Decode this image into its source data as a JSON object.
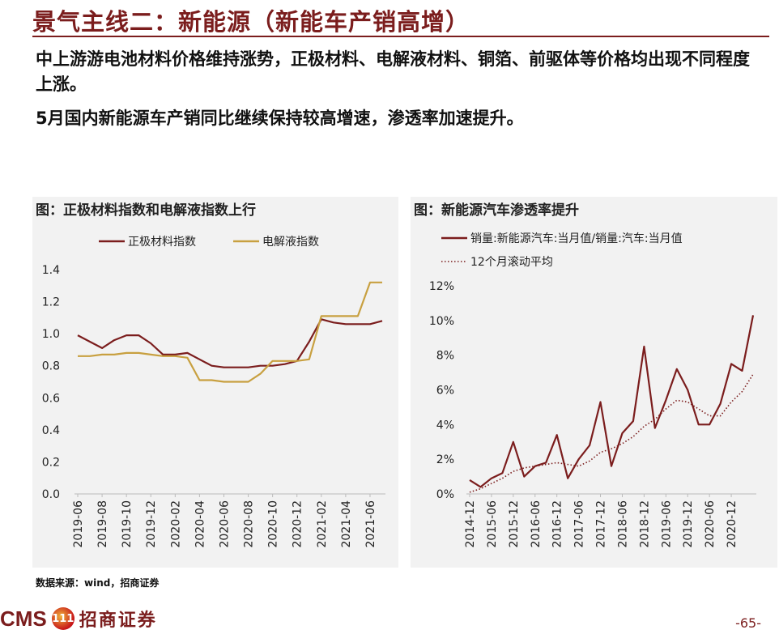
{
  "slide": {
    "title": "景气主线二：新能源（新能车产销高增）",
    "bullet1": "中上游游电池材料价格维持涨势，正极材料、电解液材料、铜箔、前驱体等价格均出现不同程度上涨。",
    "bullet2": "5月国内新能源车产销同比继续保持较高增速，渗透率加速提升。",
    "source": "数据来源：wind，招商证券",
    "logo_text": "CMS",
    "logo_cn": "招商证券",
    "logo_mark": "111",
    "page_number": "-65-"
  },
  "colors": {
    "maroon": "#7b1d1d",
    "gold": "#c8a040",
    "panel_bg": "#f2f2f2"
  },
  "chart_data": [
    {
      "type": "line",
      "panel_title": "图：正极材料指数和电解液指数上行",
      "x": [
        "2019-06",
        "2019-07",
        "2019-08",
        "2019-09",
        "2019-10",
        "2019-11",
        "2019-12",
        "2020-01",
        "2020-02",
        "2020-03",
        "2020-04",
        "2020-05",
        "2020-06",
        "2020-07",
        "2020-08",
        "2020-09",
        "2020-10",
        "2020-11",
        "2020-12",
        "2021-01",
        "2021-02",
        "2021-03",
        "2021-04",
        "2021-05",
        "2021-06",
        "2021-07"
      ],
      "xticks": [
        "2019-06",
        "2019-08",
        "2019-10",
        "2019-12",
        "2020-02",
        "2020-04",
        "2020-06",
        "2020-08",
        "2020-10",
        "2020-12",
        "2021-02",
        "2021-04",
        "2021-06"
      ],
      "ylim": [
        0,
        1.4
      ],
      "yticks": [
        "0.0",
        "0.2",
        "0.4",
        "0.6",
        "0.8",
        "1.0",
        "1.2",
        "1.4"
      ],
      "series": [
        {
          "name": "正极材料指数",
          "color": "#7b1d1d",
          "values": [
            0.99,
            0.95,
            0.91,
            0.96,
            0.99,
            0.99,
            0.94,
            0.87,
            0.87,
            0.88,
            0.84,
            0.8,
            0.79,
            0.79,
            0.79,
            0.8,
            0.8,
            0.81,
            0.83,
            0.95,
            1.09,
            1.07,
            1.06,
            1.06,
            1.06,
            1.08
          ]
        },
        {
          "name": "电解液指数",
          "color": "#c8a040",
          "values": [
            0.86,
            0.86,
            0.87,
            0.87,
            0.88,
            0.88,
            0.87,
            0.86,
            0.86,
            0.85,
            0.71,
            0.71,
            0.7,
            0.7,
            0.7,
            0.75,
            0.83,
            0.83,
            0.83,
            0.84,
            1.11,
            1.11,
            1.11,
            1.11,
            1.32,
            1.32
          ]
        }
      ]
    },
    {
      "type": "line",
      "panel_title": "图：新能源汽车渗透率提升",
      "x": [
        "2014-12",
        "2015-03",
        "2015-06",
        "2015-09",
        "2015-12",
        "2016-03",
        "2016-06",
        "2016-09",
        "2016-12",
        "2017-03",
        "2017-06",
        "2017-09",
        "2017-12",
        "2018-03",
        "2018-06",
        "2018-09",
        "2018-12",
        "2019-03",
        "2019-06",
        "2019-09",
        "2019-12",
        "2020-03",
        "2020-06",
        "2020-09",
        "2020-12",
        "2021-03",
        "2021-05"
      ],
      "xticks": [
        "2014-12",
        "2015-06",
        "2015-12",
        "2016-06",
        "2016-12",
        "2017-06",
        "2017-12",
        "2018-06",
        "2018-12",
        "2019-06",
        "2019-12",
        "2020-06",
        "2020-12"
      ],
      "ylim": [
        0,
        12
      ],
      "yticks": [
        "0%",
        "2%",
        "4%",
        "6%",
        "8%",
        "10%",
        "12%"
      ],
      "series": [
        {
          "name": "销量:新能源汽车:当月值/销量:汽车:当月值",
          "color": "#7b1d1d",
          "style": "solid",
          "values": [
            0.8,
            0.4,
            0.9,
            1.2,
            3.0,
            1.0,
            1.6,
            1.8,
            3.4,
            0.9,
            2.0,
            2.8,
            5.3,
            1.6,
            3.5,
            4.2,
            8.5,
            3.8,
            5.4,
            7.2,
            6.0,
            4.0,
            4.0,
            5.2,
            7.5,
            7.1,
            10.3
          ]
        },
        {
          "name": "12个月滚动平均",
          "color": "#7b1d1d",
          "style": "dotted",
          "values": [
            0.1,
            0.3,
            0.6,
            0.9,
            1.3,
            1.5,
            1.6,
            1.7,
            1.8,
            1.7,
            1.6,
            1.9,
            2.4,
            2.6,
            2.9,
            3.3,
            3.9,
            4.3,
            4.9,
            5.4,
            5.3,
            4.9,
            4.5,
            4.5,
            5.3,
            5.9,
            6.9
          ]
        }
      ]
    }
  ]
}
